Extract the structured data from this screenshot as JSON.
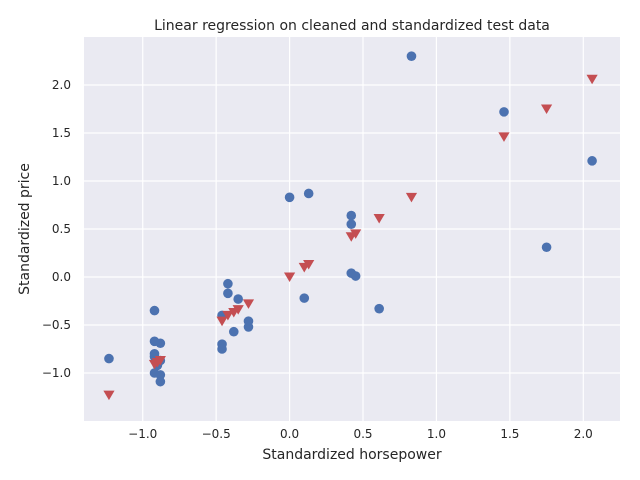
{
  "chart_data": {
    "type": "scatter",
    "title": "Linear regression on cleaned and standardized test data",
    "xlabel": "Standardized horsepower",
    "ylabel": "Standardized price",
    "xlim": [
      -1.4,
      2.25
    ],
    "ylim": [
      -1.5,
      2.5
    ],
    "x_ticks": [
      -1.0,
      -0.5,
      0.0,
      0.5,
      1.0,
      1.5,
      2.0
    ],
    "x_tick_labels": [
      "−1.0",
      "−0.5",
      "0.0",
      "0.5",
      "1.0",
      "1.5",
      "2.0"
    ],
    "y_ticks": [
      -1.0,
      -0.5,
      0.0,
      0.5,
      1.0,
      1.5,
      2.0
    ],
    "y_tick_labels": [
      "−1.0",
      "−0.5",
      "0.0",
      "0.5",
      "1.0",
      "1.5",
      "2.0"
    ],
    "grid": true,
    "legend": false,
    "background_color": "#eaeaf2",
    "series": [
      {
        "marker": "circle",
        "color": "#4c72b0",
        "points": [
          [
            0.83,
            2.3
          ],
          [
            1.46,
            1.72
          ],
          [
            2.06,
            1.21
          ],
          [
            1.75,
            0.31
          ],
          [
            0.0,
            0.83
          ],
          [
            0.13,
            0.87
          ],
          [
            0.42,
            0.64
          ],
          [
            0.42,
            0.55
          ],
          [
            0.42,
            0.04
          ],
          [
            0.45,
            0.01
          ],
          [
            0.1,
            -0.22
          ],
          [
            0.61,
            -0.33
          ],
          [
            -0.42,
            -0.07
          ],
          [
            -0.42,
            -0.17
          ],
          [
            -0.35,
            -0.23
          ],
          [
            -0.46,
            -0.4
          ],
          [
            -0.28,
            -0.46
          ],
          [
            -0.28,
            -0.52
          ],
          [
            -0.38,
            -0.57
          ],
          [
            -0.46,
            -0.7
          ],
          [
            -0.46,
            -0.75
          ],
          [
            -0.92,
            -0.35
          ],
          [
            -0.92,
            -0.67
          ],
          [
            -0.88,
            -0.69
          ],
          [
            -0.92,
            -0.8
          ],
          [
            -0.92,
            -0.83
          ],
          [
            -0.88,
            -0.87
          ],
          [
            -0.9,
            -0.92
          ],
          [
            -0.92,
            -1.0
          ],
          [
            -0.88,
            -1.02
          ],
          [
            -0.88,
            -1.09
          ],
          [
            -1.23,
            -0.85
          ]
        ]
      },
      {
        "marker": "triangle-down",
        "color": "#c44e52",
        "points": [
          [
            2.06,
            2.06
          ],
          [
            1.75,
            1.75
          ],
          [
            1.46,
            1.46
          ],
          [
            0.83,
            0.83
          ],
          [
            0.61,
            0.61
          ],
          [
            0.45,
            0.45
          ],
          [
            0.42,
            0.42
          ],
          [
            0.13,
            0.13
          ],
          [
            0.1,
            0.1
          ],
          [
            0.0,
            0.0
          ],
          [
            -0.28,
            -0.28
          ],
          [
            -0.35,
            -0.34
          ],
          [
            -0.38,
            -0.37
          ],
          [
            -0.42,
            -0.4
          ],
          [
            -0.46,
            -0.46
          ],
          [
            -0.88,
            -0.87
          ],
          [
            -0.9,
            -0.89
          ],
          [
            -0.92,
            -0.91
          ],
          [
            -1.23,
            -1.23
          ]
        ]
      }
    ]
  }
}
